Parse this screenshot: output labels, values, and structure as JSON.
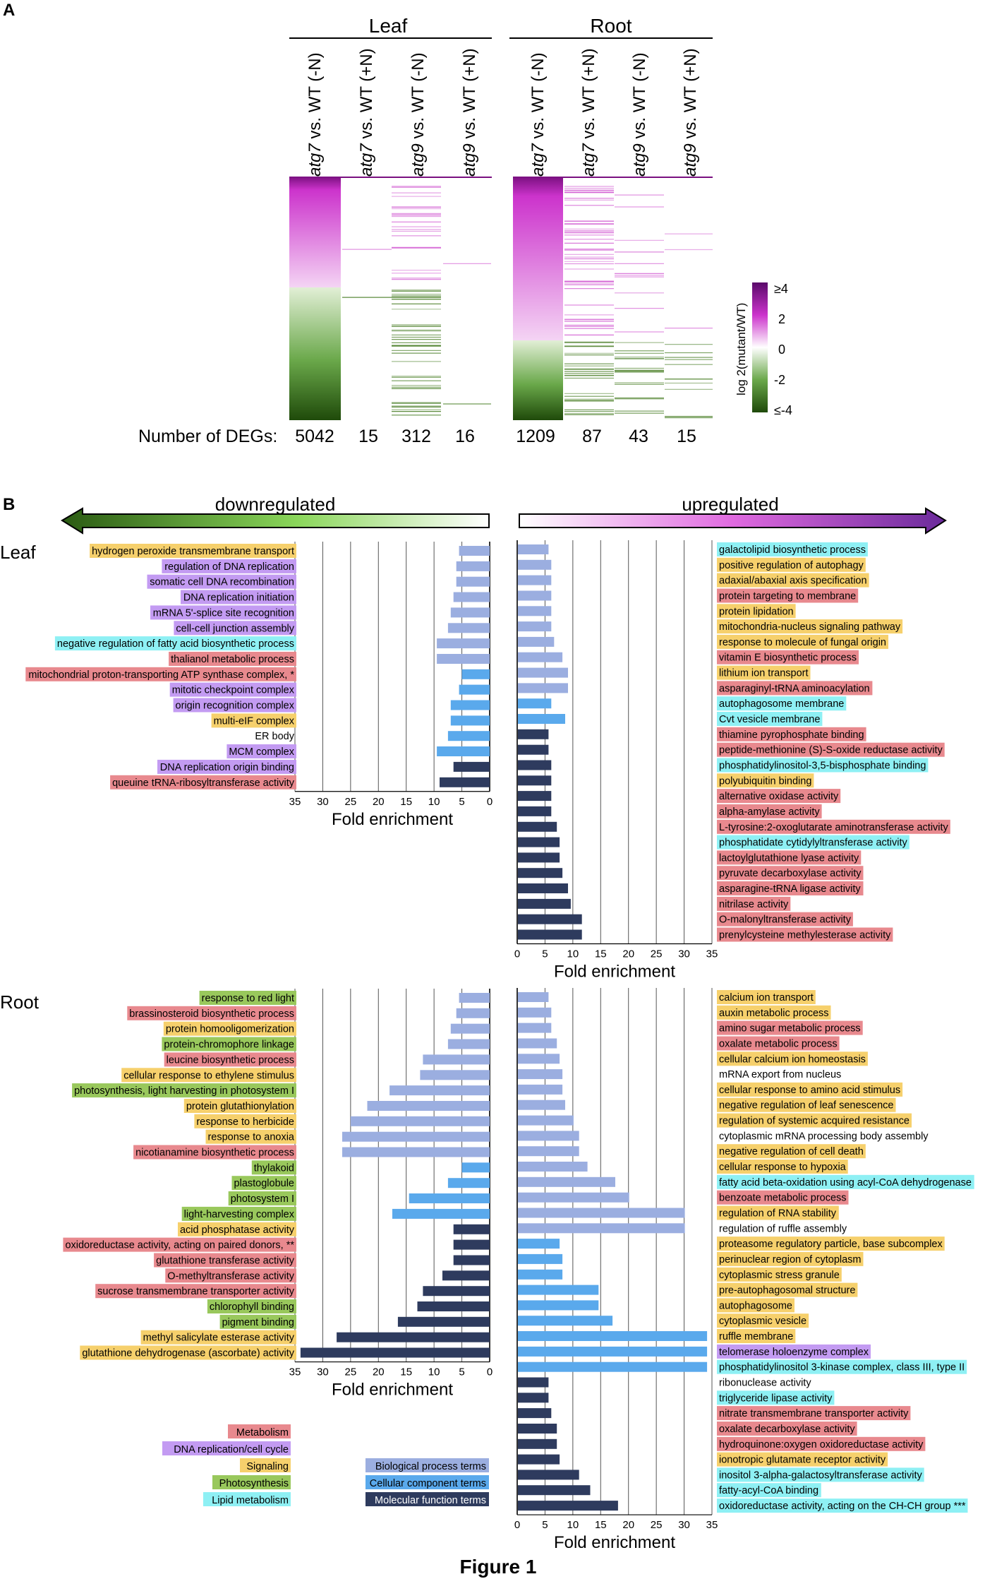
{
  "figure_title": "Figure 1",
  "panel_a": {
    "label": "A",
    "groups": [
      {
        "name": "Leaf",
        "columns": [
          {
            "label_italic": "atg7",
            "label_rest": " vs. WT (-N)",
            "degs": "5042"
          },
          {
            "label_italic": "atg7",
            "label_rest": " vs. WT (+N)",
            "degs": "15"
          },
          {
            "label_italic": "atg9",
            "label_rest": " vs. WT (-N)",
            "degs": "312"
          },
          {
            "label_italic": "atg9",
            "label_rest": " vs. WT (+N)",
            "degs": "16"
          }
        ]
      },
      {
        "name": "Root",
        "columns": [
          {
            "label_italic": "atg7",
            "label_rest": " vs. WT (-N)",
            "degs": "1209"
          },
          {
            "label_italic": "atg7",
            "label_rest": " vs. WT (+N)",
            "degs": "87"
          },
          {
            "label_italic": "atg9",
            "label_rest": " vs. WT (-N)",
            "degs": "43"
          },
          {
            "label_italic": "atg9",
            "label_rest": " vs. WT (+N)",
            "degs": "15"
          }
        ]
      }
    ],
    "degs_label": "Number of DEGs:",
    "colorbar": {
      "title": "log 2(mutant/WT)",
      "ticks": [
        "≥4",
        "2",
        "0",
        "-2",
        "≤-4"
      ]
    },
    "colors": {
      "up": "#cc33cc",
      "down": "#3a7a18",
      "up_dark": "#7a1080",
      "down_dark": "#1f4a0a"
    }
  },
  "panel_b": {
    "label": "B",
    "down_label": "downregulated",
    "up_label": "upregulated",
    "xlabel": "Fold enrichment",
    "axis_ticks": [
      "0",
      "5",
      "10",
      "15",
      "20",
      "25",
      "30",
      "35"
    ],
    "legend_categories": [
      {
        "name": "Metabolism",
        "color": "#e8898e"
      },
      {
        "name": "DNA replication/cell cycle",
        "color": "#c39bf2"
      },
      {
        "name": "Signaling",
        "color": "#f6d06c"
      },
      {
        "name": "Photosynthesis",
        "color": "#99c85c"
      },
      {
        "name": "Lipid metabolism",
        "color": "#8ef0f4"
      }
    ],
    "legend_terms": [
      {
        "name": "Biological process terms",
        "color": "#9baee0",
        "text_color": "#000000"
      },
      {
        "name": "Cellular component terms",
        "color": "#5aa9ec",
        "text_color": "#000000"
      },
      {
        "name": "Molecular function terms",
        "color": "#2e3b5e",
        "text_color": "#ffffff"
      }
    ]
  },
  "chart_data": [
    {
      "type": "bar",
      "title": "Leaf downregulated",
      "orientation": "horizontal",
      "xlabel": "Fold enrichment",
      "xlim": [
        0,
        35
      ],
      "bars": [
        {
          "label": "hydrogen peroxide transmembrane transport",
          "value": 5.5,
          "term": "bp",
          "cat": "signaling"
        },
        {
          "label": "regulation of DNA replication",
          "value": 6.0,
          "term": "bp",
          "cat": "dna"
        },
        {
          "label": "somatic cell DNA recombination",
          "value": 6.0,
          "term": "bp",
          "cat": "dna"
        },
        {
          "label": "DNA replication initiation",
          "value": 6.5,
          "term": "bp",
          "cat": "dna"
        },
        {
          "label": "mRNA 5'-splice site recognition",
          "value": 7.0,
          "term": "bp",
          "cat": "dna"
        },
        {
          "label": "cell-cell junction assembly",
          "value": 7.5,
          "term": "bp",
          "cat": "dna"
        },
        {
          "label": "negative regulation of fatty acid biosynthetic process",
          "value": 9.5,
          "term": "bp",
          "cat": "lipid"
        },
        {
          "label": "thalianol metabolic process",
          "value": 9.5,
          "term": "bp",
          "cat": "metabolism"
        },
        {
          "label": "mitochondrial proton-transporting ATP synthase complex, *",
          "value": 5.0,
          "term": "cc",
          "cat": "metabolism"
        },
        {
          "label": "mitotic checkpoint complex",
          "value": 5.5,
          "term": "cc",
          "cat": "dna"
        },
        {
          "label": "origin recognition complex",
          "value": 7.0,
          "term": "cc",
          "cat": "dna"
        },
        {
          "label": "multi-eIF complex",
          "value": 7.0,
          "term": "cc",
          "cat": "signaling"
        },
        {
          "label": "ER body",
          "value": 7.5,
          "term": "cc",
          "cat": "none"
        },
        {
          "label": "MCM complex",
          "value": 9.5,
          "term": "cc",
          "cat": "dna"
        },
        {
          "label": "DNA replication origin binding",
          "value": 6.5,
          "term": "mf",
          "cat": "dna"
        },
        {
          "label": "queuine tRNA-ribosyltransferase activity",
          "value": 9.0,
          "term": "mf",
          "cat": "metabolism"
        }
      ]
    },
    {
      "type": "bar",
      "title": "Leaf upregulated",
      "orientation": "horizontal",
      "xlabel": "Fold enrichment",
      "xlim": [
        0,
        35
      ],
      "bars": [
        {
          "label": "galactolipid biosynthetic process",
          "value": 5.5,
          "term": "bp",
          "cat": "lipid"
        },
        {
          "label": "positive regulation of autophagy",
          "value": 6.0,
          "term": "bp",
          "cat": "signaling"
        },
        {
          "label": "adaxial/abaxial axis specification",
          "value": 6.0,
          "term": "bp",
          "cat": "signaling"
        },
        {
          "label": "protein targeting to membrane",
          "value": 6.0,
          "term": "bp",
          "cat": "metabolism"
        },
        {
          "label": "protein lipidation",
          "value": 6.0,
          "term": "bp",
          "cat": "signaling"
        },
        {
          "label": "mitochondria-nucleus signaling pathway",
          "value": 6.0,
          "term": "bp",
          "cat": "signaling"
        },
        {
          "label": "response to molecule of fungal origin",
          "value": 6.5,
          "term": "bp",
          "cat": "signaling"
        },
        {
          "label": "vitamin E biosynthetic process",
          "value": 8.0,
          "term": "bp",
          "cat": "metabolism"
        },
        {
          "label": "lithium ion transport",
          "value": 9.0,
          "term": "bp",
          "cat": "signaling"
        },
        {
          "label": "asparaginyl-tRNA aminoacylation",
          "value": 9.0,
          "term": "bp",
          "cat": "metabolism"
        },
        {
          "label": "autophagosome membrane",
          "value": 6.0,
          "term": "cc",
          "cat": "lipid"
        },
        {
          "label": "Cvt vesicle membrane",
          "value": 8.5,
          "term": "cc",
          "cat": "lipid"
        },
        {
          "label": "thiamine pyrophosphate binding",
          "value": 5.5,
          "term": "mf",
          "cat": "metabolism"
        },
        {
          "label": "peptide-methionine (S)-S-oxide reductase activity",
          "value": 5.5,
          "term": "mf",
          "cat": "metabolism"
        },
        {
          "label": "phosphatidylinositol-3,5-bisphosphate binding",
          "value": 6.0,
          "term": "mf",
          "cat": "lipid"
        },
        {
          "label": "polyubiquitin binding",
          "value": 6.0,
          "term": "mf",
          "cat": "signaling"
        },
        {
          "label": "alternative oxidase activity",
          "value": 6.0,
          "term": "mf",
          "cat": "metabolism"
        },
        {
          "label": "alpha-amylase activity",
          "value": 6.0,
          "term": "mf",
          "cat": "metabolism"
        },
        {
          "label": "L-tyrosine:2-oxoglutarate aminotransferase activity",
          "value": 7.0,
          "term": "mf",
          "cat": "metabolism"
        },
        {
          "label": "phosphatidate cytidylyltransferase activity",
          "value": 7.5,
          "term": "mf",
          "cat": "lipid"
        },
        {
          "label": "lactoylglutathione lyase activity",
          "value": 7.5,
          "term": "mf",
          "cat": "metabolism"
        },
        {
          "label": "pyruvate decarboxylase activity",
          "value": 8.0,
          "term": "mf",
          "cat": "metabolism"
        },
        {
          "label": "asparagine-tRNA ligase activity",
          "value": 9.0,
          "term": "mf",
          "cat": "metabolism"
        },
        {
          "label": "nitrilase activity",
          "value": 9.5,
          "term": "mf",
          "cat": "metabolism"
        },
        {
          "label": "O-malonyltransferase activity",
          "value": 11.5,
          "term": "mf",
          "cat": "metabolism"
        },
        {
          "label": "prenylcysteine methylesterase activity",
          "value": 11.5,
          "term": "mf",
          "cat": "metabolism"
        }
      ]
    },
    {
      "type": "bar",
      "title": "Root downregulated",
      "orientation": "horizontal",
      "xlabel": "Fold enrichment",
      "xlim": [
        0,
        35
      ],
      "bars": [
        {
          "label": "response to red light",
          "value": 5.5,
          "term": "bp",
          "cat": "photo"
        },
        {
          "label": "brassinosteroid biosynthetic process",
          "value": 6.0,
          "term": "bp",
          "cat": "metabolism"
        },
        {
          "label": "protein homooligomerization",
          "value": 7.0,
          "term": "bp",
          "cat": "signaling"
        },
        {
          "label": "protein-chromophore linkage",
          "value": 7.5,
          "term": "bp",
          "cat": "photo"
        },
        {
          "label": "leucine biosynthetic process",
          "value": 12.0,
          "term": "bp",
          "cat": "metabolism"
        },
        {
          "label": "cellular response to ethylene stimulus",
          "value": 12.5,
          "term": "bp",
          "cat": "signaling"
        },
        {
          "label": "photosynthesis, light harvesting in photosystem I",
          "value": 18.0,
          "term": "bp",
          "cat": "photo"
        },
        {
          "label": "protein glutathionylation",
          "value": 22.0,
          "term": "bp",
          "cat": "signaling"
        },
        {
          "label": "response to herbicide",
          "value": 25.0,
          "term": "bp",
          "cat": "signaling"
        },
        {
          "label": "response to anoxia",
          "value": 26.5,
          "term": "bp",
          "cat": "signaling"
        },
        {
          "label": "nicotianamine biosynthetic process",
          "value": 26.5,
          "term": "bp",
          "cat": "metabolism"
        },
        {
          "label": "thylakoid",
          "value": 5.0,
          "term": "cc",
          "cat": "photo"
        },
        {
          "label": "plastoglobule",
          "value": 7.5,
          "term": "cc",
          "cat": "photo"
        },
        {
          "label": "photosystem I",
          "value": 14.5,
          "term": "cc",
          "cat": "photo"
        },
        {
          "label": "light-harvesting complex",
          "value": 17.5,
          "term": "cc",
          "cat": "photo"
        },
        {
          "label": "acid phosphatase activity",
          "value": 6.5,
          "term": "mf",
          "cat": "signaling"
        },
        {
          "label": "oxidoreductase activity, acting on paired donors, **",
          "value": 6.5,
          "term": "mf",
          "cat": "metabolism"
        },
        {
          "label": "glutathione transferase activity",
          "value": 6.5,
          "term": "mf",
          "cat": "metabolism"
        },
        {
          "label": "O-methyltransferase activity",
          "value": 8.5,
          "term": "mf",
          "cat": "metabolism"
        },
        {
          "label": "sucrose transmembrane transporter activity",
          "value": 12.0,
          "term": "mf",
          "cat": "metabolism"
        },
        {
          "label": "chlorophyll binding",
          "value": 13.0,
          "term": "mf",
          "cat": "photo"
        },
        {
          "label": "pigment binding",
          "value": 16.5,
          "term": "mf",
          "cat": "photo"
        },
        {
          "label": "methyl salicylate esterase activity",
          "value": 27.5,
          "term": "mf",
          "cat": "signaling"
        },
        {
          "label": "glutathione dehydrogenase (ascorbate) activity",
          "value": 34.0,
          "term": "mf",
          "cat": "signaling"
        }
      ]
    },
    {
      "type": "bar",
      "title": "Root upregulated",
      "orientation": "horizontal",
      "xlabel": "Fold enrichment",
      "xlim": [
        0,
        35
      ],
      "bars": [
        {
          "label": "calcium ion transport",
          "value": 5.5,
          "term": "bp",
          "cat": "signaling"
        },
        {
          "label": "auxin metabolic process",
          "value": 6.0,
          "term": "bp",
          "cat": "signaling"
        },
        {
          "label": "amino sugar metabolic process",
          "value": 6.0,
          "term": "bp",
          "cat": "metabolism"
        },
        {
          "label": "oxalate metabolic process",
          "value": 7.0,
          "term": "bp",
          "cat": "metabolism"
        },
        {
          "label": "cellular calcium ion homeostasis",
          "value": 7.5,
          "term": "bp",
          "cat": "signaling"
        },
        {
          "label": "mRNA export from nucleus",
          "value": 8.0,
          "term": "bp",
          "cat": "none"
        },
        {
          "label": "cellular response to amino acid stimulus",
          "value": 8.0,
          "term": "bp",
          "cat": "signaling"
        },
        {
          "label": "negative regulation of leaf senescence",
          "value": 8.5,
          "term": "bp",
          "cat": "signaling"
        },
        {
          "label": "regulation of systemic acquired resistance",
          "value": 10.0,
          "term": "bp",
          "cat": "signaling"
        },
        {
          "label": "cytoplasmic mRNA processing body assembly",
          "value": 11.0,
          "term": "bp",
          "cat": "none"
        },
        {
          "label": "negative regulation of cell death",
          "value": 11.0,
          "term": "bp",
          "cat": "signaling"
        },
        {
          "label": "cellular response to hypoxia",
          "value": 12.5,
          "term": "bp",
          "cat": "signaling"
        },
        {
          "label": "fatty acid beta-oxidation using acyl-CoA dehydrogenase",
          "value": 17.5,
          "term": "bp",
          "cat": "lipid"
        },
        {
          "label": "benzoate metabolic process",
          "value": 20.0,
          "term": "bp",
          "cat": "metabolism"
        },
        {
          "label": "regulation of RNA stability",
          "value": 30.0,
          "term": "bp",
          "cat": "signaling"
        },
        {
          "label": "regulation of ruffle assembly",
          "value": 30.0,
          "term": "bp",
          "cat": "none"
        },
        {
          "label": "proteasome regulatory particle, base subcomplex",
          "value": 7.5,
          "term": "cc",
          "cat": "signaling"
        },
        {
          "label": "perinuclear region of cytoplasm",
          "value": 8.0,
          "term": "cc",
          "cat": "signaling"
        },
        {
          "label": "cytoplasmic stress granule",
          "value": 8.0,
          "term": "cc",
          "cat": "signaling"
        },
        {
          "label": "pre-autophagosomal structure",
          "value": 14.5,
          "term": "cc",
          "cat": "signaling"
        },
        {
          "label": "autophagosome",
          "value": 14.5,
          "term": "cc",
          "cat": "signaling"
        },
        {
          "label": "cytoplasmic vesicle",
          "value": 17.0,
          "term": "cc",
          "cat": "signaling"
        },
        {
          "label": "ruffle membrane",
          "value": 34.0,
          "term": "cc",
          "cat": "signaling"
        },
        {
          "label": "telomerase holoenzyme complex",
          "value": 34.0,
          "term": "cc",
          "cat": "dna"
        },
        {
          "label": "phosphatidylinositol 3-kinase complex, class III, type II",
          "value": 34.0,
          "term": "cc",
          "cat": "lipid"
        },
        {
          "label": "ribonuclease activity",
          "value": 5.5,
          "term": "mf",
          "cat": "none"
        },
        {
          "label": "triglyceride lipase activity",
          "value": 5.5,
          "term": "mf",
          "cat": "lipid"
        },
        {
          "label": "nitrate transmembrane transporter activity",
          "value": 6.0,
          "term": "mf",
          "cat": "metabolism"
        },
        {
          "label": "oxalate decarboxylase activity",
          "value": 7.0,
          "term": "mf",
          "cat": "metabolism"
        },
        {
          "label": "hydroquinone:oxygen oxidoreductase activity",
          "value": 7.0,
          "term": "mf",
          "cat": "metabolism"
        },
        {
          "label": "ionotropic glutamate receptor activity",
          "value": 7.5,
          "term": "mf",
          "cat": "signaling"
        },
        {
          "label": "inositol 3-alpha-galactosyltransferase activity",
          "value": 11.0,
          "term": "mf",
          "cat": "lipid"
        },
        {
          "label": "fatty-acyl-CoA binding",
          "value": 13.0,
          "term": "mf",
          "cat": "lipid"
        },
        {
          "label": "oxidoreductase activity, acting on the CH-CH group ***",
          "value": 18.0,
          "term": "mf",
          "cat": "lipid"
        }
      ]
    }
  ]
}
